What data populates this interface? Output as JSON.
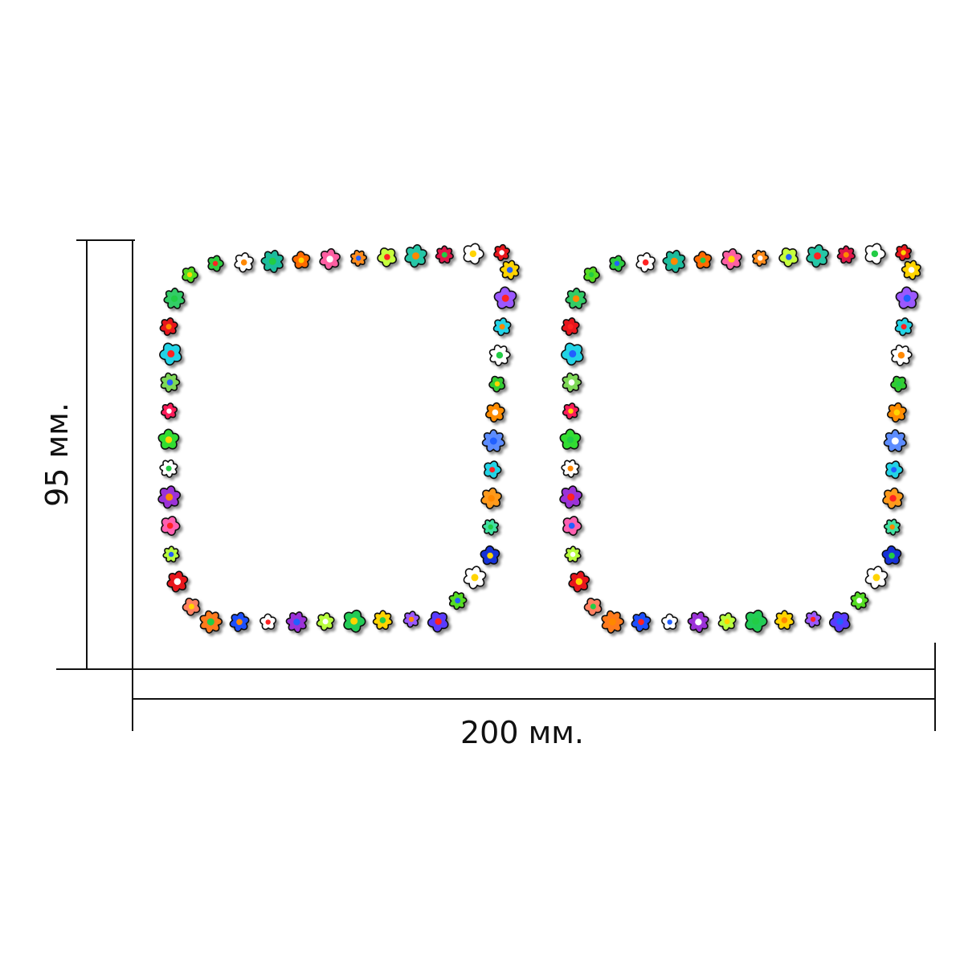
{
  "dimensions": {
    "height_label": "95 мм.",
    "width_label": "200 мм."
  },
  "frames": [
    {
      "name": "left-frame",
      "flowers": [
        "#2ecc40",
        "#ffffff",
        "#1abc9c",
        "#ff6a00",
        "#ff5fa2",
        "#ff8c1a",
        "#c6ff3d",
        "#26c6a6",
        "#e0184a",
        "#ffffff",
        "#e8141e",
        "#ffd400",
        "#9b59ff",
        "#22d3e6",
        "#ffffff",
        "#33cc33",
        "#ff8c00",
        "#5b8cff",
        "#22d3e6",
        "#ff9a1a",
        "#40e0a0",
        "#1530d8",
        "#ffffff",
        "#55dd22",
        "#5a3bff",
        "#9b59ff",
        "#ffd400",
        "#22cc55",
        "#b8ff3d",
        "#9b30d8",
        "#ffffff",
        "#1f4fff",
        "#ff7a1a",
        "#ff8060",
        "#e8141e",
        "#b8ff3d",
        "#ff5fb0",
        "#9b30d8",
        "#ffffff",
        "#33dd33",
        "#ff1f5a",
        "#7ed957",
        "#22d3e6",
        "#e8141e",
        "#33cc66",
        "#55dd22"
      ]
    },
    {
      "name": "right-frame",
      "flowers": [
        "#2ecc40",
        "#ffffff",
        "#1abc9c",
        "#ff6a00",
        "#ff5fa2",
        "#ff8c1a",
        "#c6ff3d",
        "#26c6a6",
        "#e0184a",
        "#ffffff",
        "#e8141e",
        "#ffd400",
        "#9b59ff",
        "#22d3e6",
        "#ffffff",
        "#33cc33",
        "#ff8c00",
        "#5b8cff",
        "#22d3e6",
        "#ff9a1a",
        "#40e0a0",
        "#1530d8",
        "#ffffff",
        "#55dd22",
        "#5a3bff",
        "#9b59ff",
        "#ffd400",
        "#22cc55",
        "#b8ff3d",
        "#9b30d8",
        "#ffffff",
        "#1f4fff",
        "#ff7a1a",
        "#ff8060",
        "#e8141e",
        "#b8ff3d",
        "#ff5fb0",
        "#9b30d8",
        "#ffffff",
        "#33dd33",
        "#ff1f5a",
        "#7ed957",
        "#22d3e6",
        "#e8141e",
        "#33cc66",
        "#55dd22"
      ]
    }
  ],
  "center_colors": [
    "#ff2020",
    "#2060ff",
    "#ffffff",
    "#ffd400",
    "#22cc44",
    "#ff8800"
  ]
}
